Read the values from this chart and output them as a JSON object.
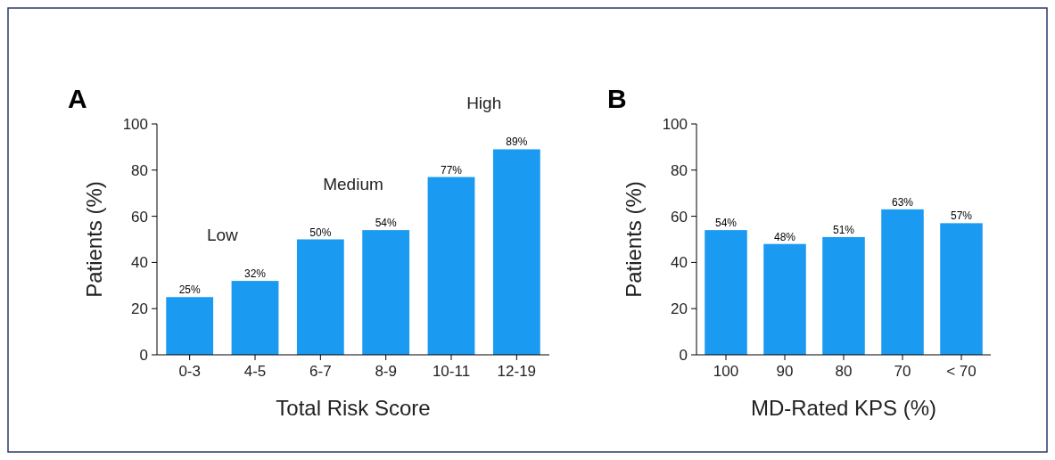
{
  "chart_data": [
    {
      "type": "bar",
      "title": "A",
      "xlabel": "Total Risk Score",
      "ylabel": "Patients (%)",
      "categories": [
        "0-3",
        "4-5",
        "6-7",
        "8-9",
        "10-11",
        "12-19"
      ],
      "values": [
        25,
        32,
        50,
        54,
        77,
        89
      ],
      "value_labels": [
        "25%",
        "32%",
        "50%",
        "54%",
        "77%",
        "89%"
      ],
      "color": "#1a9af0",
      "ylim": [
        0,
        100
      ],
      "yticks": [
        0,
        20,
        40,
        60,
        80,
        100
      ],
      "annotations": [
        "Low",
        "Medium",
        "High"
      ]
    },
    {
      "type": "bar",
      "title": "B",
      "xlabel": "MD-Rated KPS (%)",
      "ylabel": "Patients (%)",
      "categories": [
        "100",
        "90",
        "80",
        "70",
        "< 70"
      ],
      "values": [
        54,
        48,
        51,
        63,
        57
      ],
      "value_labels": [
        "54%",
        "48%",
        "51%",
        "63%",
        "57%"
      ],
      "color": "#1a9af0",
      "ylim": [
        0,
        100
      ],
      "yticks": [
        0,
        20,
        40,
        60,
        80,
        100
      ]
    }
  ]
}
